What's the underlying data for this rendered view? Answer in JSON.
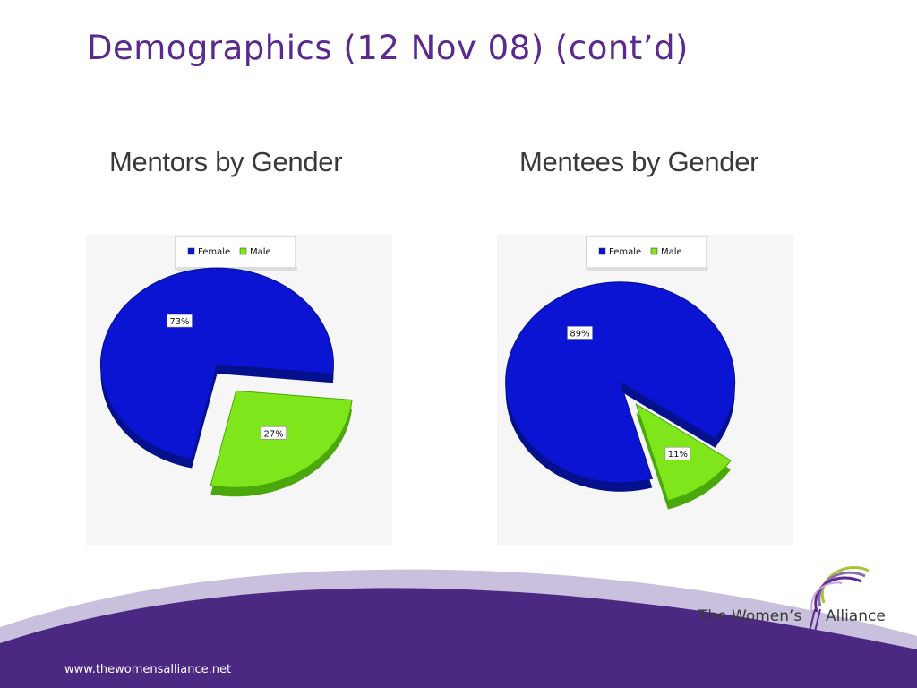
{
  "slide": {
    "title": "Demographics (12 Nov 08) (cont’d)",
    "footer_url": "www.thewomensalliance.net",
    "logo_text_left": "The Women’s",
    "logo_text_right": "Alliance",
    "colors": {
      "title": "#5b2a8e",
      "footer_band": "#4b2882",
      "female": "#0a14d2",
      "male": "#7ee61a"
    }
  },
  "chart_data": [
    {
      "type": "pie",
      "title": "Mentors by Gender",
      "categories": [
        "Female",
        "Male"
      ],
      "values": [
        73,
        27
      ],
      "labels": [
        "73%",
        "27%"
      ],
      "legend": {
        "position": "top-center",
        "entries": [
          "Female",
          "Male"
        ]
      },
      "colors": [
        "#0a14d2",
        "#7ee61a"
      ],
      "exploded": true,
      "style": "3d"
    },
    {
      "type": "pie",
      "title": "Mentees by Gender",
      "categories": [
        "Female",
        "Male"
      ],
      "values": [
        89,
        11
      ],
      "labels": [
        "89%",
        "11%"
      ],
      "legend": {
        "position": "top-center",
        "entries": [
          "Female",
          "Male"
        ]
      },
      "colors": [
        "#0a14d2",
        "#7ee61a"
      ],
      "exploded": true,
      "style": "3d"
    }
  ]
}
